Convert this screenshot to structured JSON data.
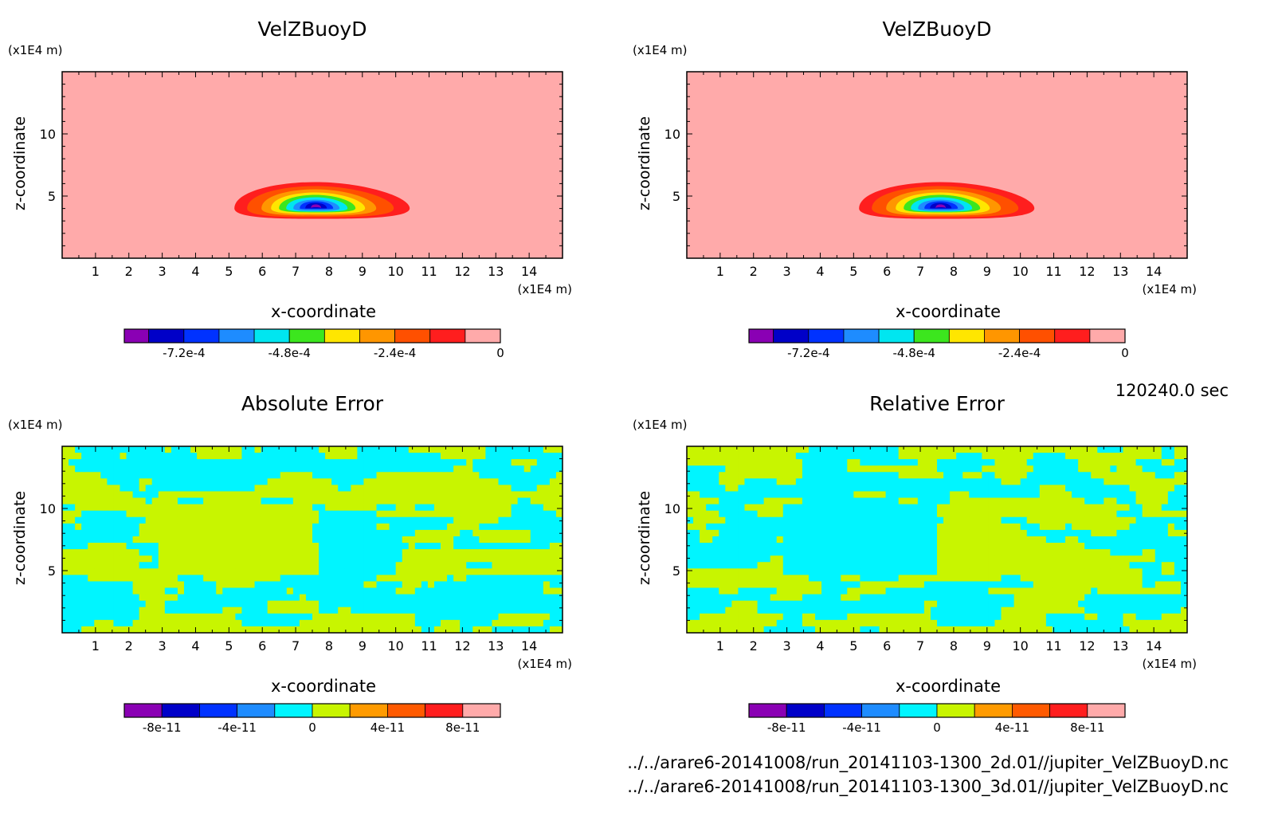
{
  "time_label": "120240.0 sec",
  "footer": {
    "file_2d": "../../arare6-20141008/run_20141103-1300_2d.01//jupiter_VelZBuoyD.nc",
    "file_3d": "../../arare6-20141008/run_20141103-1300_3d.01//jupiter_VelZBuoyD.nc"
  },
  "colors": {
    "velz_palette": [
      "#8a00b4",
      "#0000c8",
      "#0032ff",
      "#1e8cff",
      "#00e6f0",
      "#3ce61e",
      "#ffe600",
      "#ff9600",
      "#ff5000",
      "#ff1e1e",
      "#ffaaaa"
    ],
    "error_palette": [
      "#8a00b4",
      "#0000c8",
      "#0032ff",
      "#1e8cff",
      "#00f5ff",
      "#c8f500",
      "#ff9b00",
      "#ff5a00",
      "#ff1e1e",
      "#ffaaaa"
    ],
    "background_fill": "#ffaaaa",
    "error_low": "#00f5ff",
    "error_high": "#c8f500"
  },
  "chart_data": [
    {
      "type": "heatmap",
      "title": "VelZBuoyD",
      "xlabel": "x-coordinate",
      "ylabel": "z-coordinate",
      "x_unit": "(x1E4 m)",
      "y_unit": "(x1E4 m)",
      "xlim": [
        0,
        15
      ],
      "ylim": [
        0,
        15
      ],
      "xticks": [
        "1",
        "2",
        "3",
        "4",
        "5",
        "6",
        "7",
        "8",
        "9",
        "10",
        "11",
        "12",
        "13",
        "14"
      ],
      "yticks": [
        "5",
        "10"
      ],
      "feature": {
        "center_x": 7.6,
        "center_z": 4.2,
        "min_value": -0.00088
      },
      "colorbar_labels": [
        "-7.2e-4",
        "-4.8e-4",
        "-2.4e-4",
        "0"
      ],
      "colorbar_values": [
        -0.00072,
        -0.00048,
        -0.00024,
        0
      ]
    },
    {
      "type": "heatmap",
      "title": "VelZBuoyD",
      "xlabel": "x-coordinate",
      "ylabel": "z-coordinate",
      "x_unit": "(x1E4 m)",
      "y_unit": "(x1E4 m)",
      "xlim": [
        0,
        15
      ],
      "ylim": [
        0,
        15
      ],
      "xticks": [
        "1",
        "2",
        "3",
        "4",
        "5",
        "6",
        "7",
        "8",
        "9",
        "10",
        "11",
        "12",
        "13",
        "14"
      ],
      "yticks": [
        "5",
        "10"
      ],
      "feature": {
        "center_x": 7.6,
        "center_z": 4.2,
        "min_value": -0.00088
      },
      "colorbar_labels": [
        "-7.2e-4",
        "-4.8e-4",
        "-2.4e-4",
        "0"
      ],
      "colorbar_values": [
        -0.00072,
        -0.00048,
        -0.00024,
        0
      ]
    },
    {
      "type": "heatmap",
      "title": "Absolute Error",
      "xlabel": "x-coordinate",
      "ylabel": "z-coordinate",
      "x_unit": "(x1E4 m)",
      "y_unit": "(x1E4 m)",
      "xlim": [
        0,
        15
      ],
      "ylim": [
        0,
        15
      ],
      "xticks": [
        "1",
        "2",
        "3",
        "4",
        "5",
        "6",
        "7",
        "8",
        "9",
        "10",
        "11",
        "12",
        "13",
        "14"
      ],
      "yticks": [
        "5",
        "10"
      ],
      "colorbar_labels": [
        "-8e-11",
        "-4e-11",
        "0",
        "4e-11",
        "8e-11"
      ],
      "colorbar_values": [
        -8e-11,
        -4e-11,
        0,
        4e-11,
        8e-11
      ]
    },
    {
      "type": "heatmap",
      "title": "Relative Error",
      "xlabel": "x-coordinate",
      "ylabel": "z-coordinate",
      "x_unit": "(x1E4 m)",
      "y_unit": "(x1E4 m)",
      "xlim": [
        0,
        15
      ],
      "ylim": [
        0,
        15
      ],
      "xticks": [
        "1",
        "2",
        "3",
        "4",
        "5",
        "6",
        "7",
        "8",
        "9",
        "10",
        "11",
        "12",
        "13",
        "14"
      ],
      "yticks": [
        "5",
        "10"
      ],
      "colorbar_labels": [
        "-8e-11",
        "-4e-11",
        "0",
        "4e-11",
        "8e-11"
      ],
      "colorbar_values": [
        -8e-11,
        -4e-11,
        0,
        4e-11,
        8e-11
      ]
    }
  ]
}
